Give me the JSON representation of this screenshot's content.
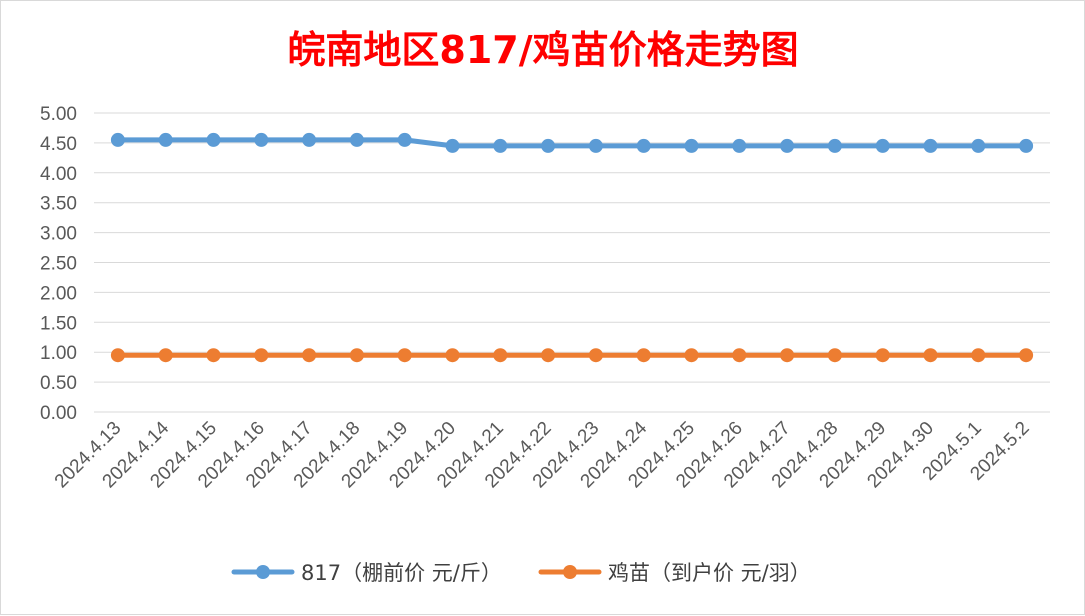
{
  "chart_data": {
    "type": "line",
    "title": "皖南地区817/鸡苗价格走势图",
    "categories": [
      "2024.4.13",
      "2024.4.14",
      "2024.4.15",
      "2024.4.16",
      "2024.4.17",
      "2024.4.18",
      "2024.4.19",
      "2024.4.20",
      "2024.4.21",
      "2024.4.22",
      "2024.4.23",
      "2024.4.24",
      "2024.4.25",
      "2024.4.26",
      "2024.4.27",
      "2024.4.28",
      "2024.4.29",
      "2024.4.30",
      "2024.5.1",
      "2024.5.2"
    ],
    "series": [
      {
        "name": "817（棚前价 元/斤）",
        "color": "#5b9bd5",
        "values": [
          4.55,
          4.55,
          4.55,
          4.55,
          4.55,
          4.55,
          4.55,
          4.45,
          4.45,
          4.45,
          4.45,
          4.45,
          4.45,
          4.45,
          4.45,
          4.45,
          4.45,
          4.45,
          4.45,
          4.45
        ]
      },
      {
        "name": "鸡苗（到户价 元/羽）",
        "color": "#ed7d31",
        "values": [
          0.95,
          0.95,
          0.95,
          0.95,
          0.95,
          0.95,
          0.95,
          0.95,
          0.95,
          0.95,
          0.95,
          0.95,
          0.95,
          0.95,
          0.95,
          0.95,
          0.95,
          0.95,
          0.95,
          0.95
        ]
      }
    ],
    "yticks": [
      "0.00",
      "0.50",
      "1.00",
      "1.50",
      "2.00",
      "2.50",
      "3.00",
      "3.50",
      "4.00",
      "4.50",
      "5.00"
    ],
    "ylim": [
      0,
      5
    ],
    "grid": true,
    "legend": "bottom"
  }
}
